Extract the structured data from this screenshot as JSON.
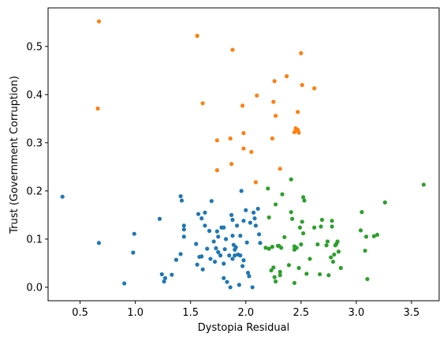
{
  "chart_data": {
    "type": "scatter",
    "title": "",
    "xlabel": "Dystopia Residual",
    "ylabel": "Trust (Government Corruption)",
    "xlim": [
      0.21,
      3.75
    ],
    "ylim": [
      -0.028,
      0.58
    ],
    "xticks": [
      0.5,
      1.0,
      1.5,
      2.0,
      2.5,
      3.0,
      3.5
    ],
    "xtick_labels": [
      "0.5",
      "1.0",
      "1.5",
      "2.0",
      "2.5",
      "3.0",
      "3.5"
    ],
    "yticks": [
      0.0,
      0.1,
      0.2,
      0.3,
      0.4,
      0.5
    ],
    "ytick_labels": [
      "0.0",
      "0.1",
      "0.2",
      "0.3",
      "0.4",
      "0.5"
    ],
    "grid": false,
    "legend": "none",
    "series": [
      {
        "color": "#1f77b4",
        "points": [
          [
            0.34,
            0.188
          ],
          [
            0.67,
            0.092
          ],
          [
            0.9,
            0.008
          ],
          [
            0.98,
            0.072
          ],
          [
            0.99,
            0.111
          ],
          [
            1.22,
            0.142
          ],
          [
            1.24,
            0.027
          ],
          [
            1.26,
            0.012
          ],
          [
            1.27,
            0.019
          ],
          [
            1.33,
            0.026
          ],
          [
            1.37,
            0.057
          ],
          [
            1.41,
            0.189
          ],
          [
            1.42,
            0.18
          ],
          [
            1.41,
            0.069
          ],
          [
            1.44,
            0.128
          ],
          [
            1.44,
            0.12
          ],
          [
            1.44,
            0.105
          ],
          [
            1.55,
            0.09
          ],
          [
            1.56,
            0.047
          ],
          [
            1.57,
            0.152
          ],
          [
            1.58,
            0.063
          ],
          [
            1.6,
            0.143
          ],
          [
            1.6,
            0.064
          ],
          [
            1.61,
            0.037
          ],
          [
            1.63,
            0.155
          ],
          [
            1.63,
            0.128
          ],
          [
            1.65,
            0.08
          ],
          [
            1.67,
            0.117
          ],
          [
            1.68,
            0.059
          ],
          [
            1.69,
            0.179
          ],
          [
            1.71,
            0.095
          ],
          [
            1.72,
            0.053
          ],
          [
            1.73,
            0.081
          ],
          [
            1.74,
            0.116
          ],
          [
            1.75,
            0.105
          ],
          [
            1.75,
            0.073
          ],
          [
            1.77,
            0.066
          ],
          [
            1.78,
            0.124
          ],
          [
            1.8,
            0.124
          ],
          [
            1.8,
            0.049
          ],
          [
            1.8,
            0.019
          ],
          [
            1.81,
            0.079
          ],
          [
            1.82,
            0.1
          ],
          [
            1.83,
            0.011
          ],
          [
            1.85,
            0.066
          ],
          [
            1.86,
            0.0
          ],
          [
            1.87,
            0.15
          ],
          [
            1.88,
            0.14
          ],
          [
            1.88,
            0.107
          ],
          [
            1.88,
            0.059
          ],
          [
            1.89,
            0.088
          ],
          [
            1.9,
            0.078
          ],
          [
            1.9,
            0.066
          ],
          [
            1.91,
            0.083
          ],
          [
            1.92,
            0.128
          ],
          [
            1.93,
            0.068
          ],
          [
            1.94,
            0.005
          ],
          [
            1.95,
            0.107
          ],
          [
            1.95,
            0.066
          ],
          [
            1.96,
            0.2
          ],
          [
            1.97,
            0.044
          ],
          [
            1.98,
            0.138
          ],
          [
            1.98,
            0.056
          ],
          [
            2.0,
            0.16
          ],
          [
            2.01,
            0.093
          ],
          [
            2.02,
            0.03
          ],
          [
            2.03,
            0.023
          ],
          [
            2.04,
            0.134
          ],
          [
            2.06,
            0.0
          ],
          [
            2.07,
            0.155
          ],
          [
            2.08,
            0.143
          ],
          [
            2.09,
            0.128
          ],
          [
            2.11,
            0.163
          ],
          [
            2.12,
            0.11
          ],
          [
            2.13,
            0.092
          ]
        ]
      },
      {
        "color": "#ff7f0e",
        "points": [
          [
            0.66,
            0.371
          ],
          [
            0.67,
            0.552
          ],
          [
            1.56,
            0.522
          ],
          [
            1.61,
            0.382
          ],
          [
            1.74,
            0.305
          ],
          [
            1.74,
            0.243
          ],
          [
            1.86,
            0.309
          ],
          [
            1.87,
            0.256
          ],
          [
            1.88,
            0.493
          ],
          [
            1.97,
            0.377
          ],
          [
            1.98,
            0.32
          ],
          [
            1.98,
            0.288
          ],
          [
            2.05,
            0.281
          ],
          [
            2.09,
            0.218
          ],
          [
            2.1,
            0.398
          ],
          [
            2.24,
            0.309
          ],
          [
            2.25,
            0.385
          ],
          [
            2.26,
            0.428
          ],
          [
            2.27,
            0.356
          ],
          [
            2.31,
            0.246
          ],
          [
            2.37,
            0.438
          ],
          [
            2.44,
            0.322
          ],
          [
            2.45,
            0.33
          ],
          [
            2.46,
            0.326
          ],
          [
            2.47,
            0.327
          ],
          [
            2.47,
            0.364
          ],
          [
            2.48,
            0.321
          ],
          [
            2.5,
            0.486
          ],
          [
            2.51,
            0.42
          ],
          [
            2.62,
            0.413
          ]
        ]
      },
      {
        "color": "#2ca02c",
        "points": [
          [
            2.18,
            0.082
          ],
          [
            2.2,
            0.205
          ],
          [
            2.21,
            0.145
          ],
          [
            2.21,
            0.08
          ],
          [
            2.23,
            0.035
          ],
          [
            2.24,
            0.084
          ],
          [
            2.25,
            0.041
          ],
          [
            2.26,
            0.021
          ],
          [
            2.27,
            0.012
          ],
          [
            2.27,
            0.172
          ],
          [
            2.29,
            0.086
          ],
          [
            2.3,
            0.086
          ],
          [
            2.31,
            0.032
          ],
          [
            2.31,
            0.025
          ],
          [
            2.32,
            0.082
          ],
          [
            2.33,
            0.193
          ],
          [
            2.35,
            0.104
          ],
          [
            2.39,
            0.046
          ],
          [
            2.41,
            0.224
          ],
          [
            2.41,
            0.156
          ],
          [
            2.42,
            0.142
          ],
          [
            2.44,
            0.078
          ],
          [
            2.44,
            0.009
          ],
          [
            2.44,
            0.085
          ],
          [
            2.46,
            0.082
          ],
          [
            2.48,
            0.04
          ],
          [
            2.49,
            0.124
          ],
          [
            2.5,
            0.089
          ],
          [
            2.51,
            0.136
          ],
          [
            2.52,
            0.187
          ],
          [
            2.52,
            0.112
          ],
          [
            2.53,
            0.18
          ],
          [
            2.55,
            0.028
          ],
          [
            2.58,
            0.059
          ],
          [
            2.62,
            0.124
          ],
          [
            2.65,
            0.089
          ],
          [
            2.67,
            0.027
          ],
          [
            2.68,
            0.126
          ],
          [
            2.69,
            0.14
          ],
          [
            2.73,
            0.087
          ],
          [
            2.74,
            0.095
          ],
          [
            2.75,
            0.025
          ],
          [
            2.77,
            0.062
          ],
          [
            2.78,
            0.126
          ],
          [
            2.78,
            0.138
          ],
          [
            2.79,
            0.053
          ],
          [
            2.8,
            0.068
          ],
          [
            2.81,
            0.087
          ],
          [
            2.82,
            0.09
          ],
          [
            2.83,
            0.095
          ],
          [
            2.84,
            0.074
          ],
          [
            2.86,
            0.04
          ],
          [
            3.04,
            0.118
          ],
          [
            3.05,
            0.156
          ],
          [
            3.08,
            0.076
          ],
          [
            3.09,
            0.105
          ],
          [
            3.1,
            0.017
          ],
          [
            3.16,
            0.106
          ],
          [
            3.19,
            0.109
          ],
          [
            3.26,
            0.176
          ],
          [
            3.61,
            0.213
          ]
        ]
      }
    ]
  }
}
